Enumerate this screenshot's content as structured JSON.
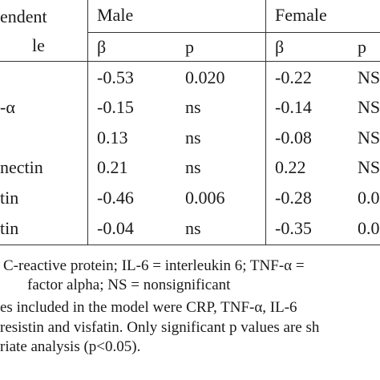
{
  "table": {
    "col1_header_line1": "endent",
    "col1_header_line2": "le",
    "group_male": "Male",
    "group_female": "Female",
    "beta": "β",
    "p": "p",
    "rows": [
      {
        "var": "",
        "male_beta": "-0.53",
        "male_p": "0.020",
        "female_beta": "-0.22",
        "female_p": "NS"
      },
      {
        "var": "-α",
        "male_beta": "-0.15",
        "male_p": "ns",
        "female_beta": "-0.14",
        "female_p": "NS"
      },
      {
        "var": "",
        "male_beta": "0.13",
        "male_p": "ns",
        "female_beta": "-0.08",
        "female_p": "NS"
      },
      {
        "var": "nectin",
        "male_beta": "0.21",
        "male_p": "ns",
        "female_beta": "0.22",
        "female_p": "NS"
      },
      {
        "var": "tin",
        "male_beta": "-0.46",
        "male_p": "0.006",
        "female_beta": "-0.28",
        "female_p": "0.0"
      },
      {
        "var": "tin",
        "male_beta": "-0.04",
        "male_p": "ns",
        "female_beta": "-0.35",
        "female_p": "0.0"
      }
    ]
  },
  "footnotes": {
    "line1": "C-reactive protein; IL-6 = interleukin 6; TNF-α =",
    "line2": "factor alpha; NS = nonsignificant",
    "line3": "es included in the model were CRP, TNF-α, IL-6",
    "line4": "resistin and visfatin. Only significant p values are sh",
    "line5": "riate analysis (p<0.05)."
  }
}
